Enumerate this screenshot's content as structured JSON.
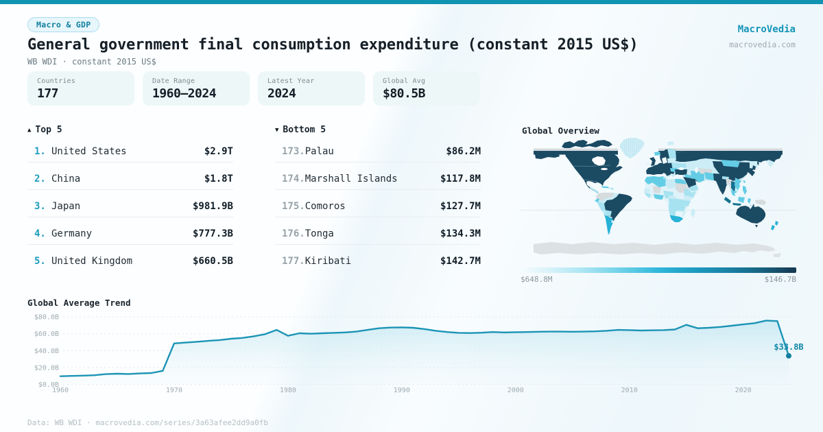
{
  "theme": {
    "accent": "#1193b2",
    "dark_text": "#161f27",
    "muted_text": "#6b7b82",
    "teal_rank": "#1e9cbe",
    "line_color": "#1b94b5"
  },
  "header": {
    "badge": "Macro & GDP",
    "title": "General government final consumption expenditure (constant 2015 US$)",
    "subtitle": "WB WDI · constant 2015 US$",
    "brand_name": "MacroVedia",
    "brand_domain": "macrovedia.com"
  },
  "stats": [
    {
      "label": "Countries",
      "value": "177"
    },
    {
      "label": "Date Range",
      "value": "1960—2024"
    },
    {
      "label": "Latest Year",
      "value": "2024"
    },
    {
      "label": "Global Avg",
      "value": "$80.5B"
    }
  ],
  "top5": {
    "header": "Top 5",
    "rows": [
      {
        "rank": "1.",
        "name": "United States",
        "value": "$2.9T"
      },
      {
        "rank": "2.",
        "name": "China",
        "value": "$1.8T"
      },
      {
        "rank": "3.",
        "name": "Japan",
        "value": "$981.9B"
      },
      {
        "rank": "4.",
        "name": "Germany",
        "value": "$777.3B"
      },
      {
        "rank": "5.",
        "name": "United Kingdom",
        "value": "$660.5B"
      }
    ]
  },
  "bottom5": {
    "header": "Bottom 5",
    "rows": [
      {
        "rank": "173.",
        "name": "Palau",
        "value": "$86.2M"
      },
      {
        "rank": "174.",
        "name": "Marshall Islands",
        "value": "$117.8M"
      },
      {
        "rank": "175.",
        "name": "Comoros",
        "value": "$127.7M"
      },
      {
        "rank": "176.",
        "name": "Tonga",
        "value": "$134.3M"
      },
      {
        "rank": "177.",
        "name": "Kiribati",
        "value": "$142.7M"
      }
    ]
  },
  "map": {
    "title": "Global Overview",
    "scale_min": "$648.8M",
    "scale_max": "$146.7B",
    "palette": {
      "m0": "#1b4a63",
      "m1": "#15718f",
      "m2": "#27b2d6",
      "m3": "#63cde5",
      "m4": "#a7e2f0",
      "m5": "#cdedf6",
      "m6": "#e7f6fb",
      "mg": "#d6dbde",
      "ma": "#dce1e4"
    }
  },
  "chart_data": {
    "type": "area",
    "title": "Global Average Trend",
    "x": [
      1960,
      1961,
      1962,
      1963,
      1964,
      1965,
      1966,
      1967,
      1968,
      1969,
      1970,
      1971,
      1972,
      1973,
      1974,
      1975,
      1976,
      1977,
      1978,
      1979,
      1980,
      1981,
      1982,
      1983,
      1984,
      1985,
      1986,
      1987,
      1988,
      1989,
      1990,
      1991,
      1992,
      1993,
      1994,
      1995,
      1996,
      1997,
      1998,
      1999,
      2000,
      2001,
      2002,
      2003,
      2004,
      2005,
      2006,
      2007,
      2008,
      2009,
      2010,
      2011,
      2012,
      2013,
      2014,
      2015,
      2016,
      2017,
      2018,
      2019,
      2020,
      2021,
      2022,
      2023,
      2024
    ],
    "values": [
      9.6,
      10.0,
      10.3,
      10.8,
      12.1,
      12.6,
      12.3,
      12.9,
      13.4,
      16.0,
      48.5,
      49.5,
      50.5,
      51.5,
      52.5,
      54.0,
      55.0,
      57.0,
      59.5,
      64.5,
      57.5,
      60.5,
      60.0,
      60.5,
      61.0,
      61.5,
      62.5,
      64.5,
      66.5,
      67.3,
      67.5,
      67.0,
      65.5,
      63.5,
      62.0,
      61.0,
      60.8,
      61.2,
      62.0,
      61.5,
      61.8,
      62.0,
      62.3,
      62.5,
      62.5,
      62.3,
      62.5,
      62.8,
      63.5,
      64.5,
      64.3,
      63.8,
      64.0,
      64.3,
      65.0,
      70.5,
      66.5,
      67.0,
      68.0,
      69.5,
      71.0,
      72.5,
      75.5,
      75.0,
      33.8
    ],
    "ylabels": [
      "$0.0B",
      "$20.0B",
      "$40.0B",
      "$60.0B",
      "$80.0B"
    ],
    "yticks": [
      0,
      20,
      40,
      60,
      80
    ],
    "xticks": [
      1960,
      1970,
      1980,
      1990,
      2000,
      2010,
      2020
    ],
    "ylim": [
      0,
      88
    ],
    "xlim": [
      1960,
      2024
    ],
    "end_label": "$33.8B",
    "end_value": 33.8
  },
  "footer": {
    "text": "Data: WB WDI · macrovedia.com/series/3a63afee2dd9a0fb"
  }
}
